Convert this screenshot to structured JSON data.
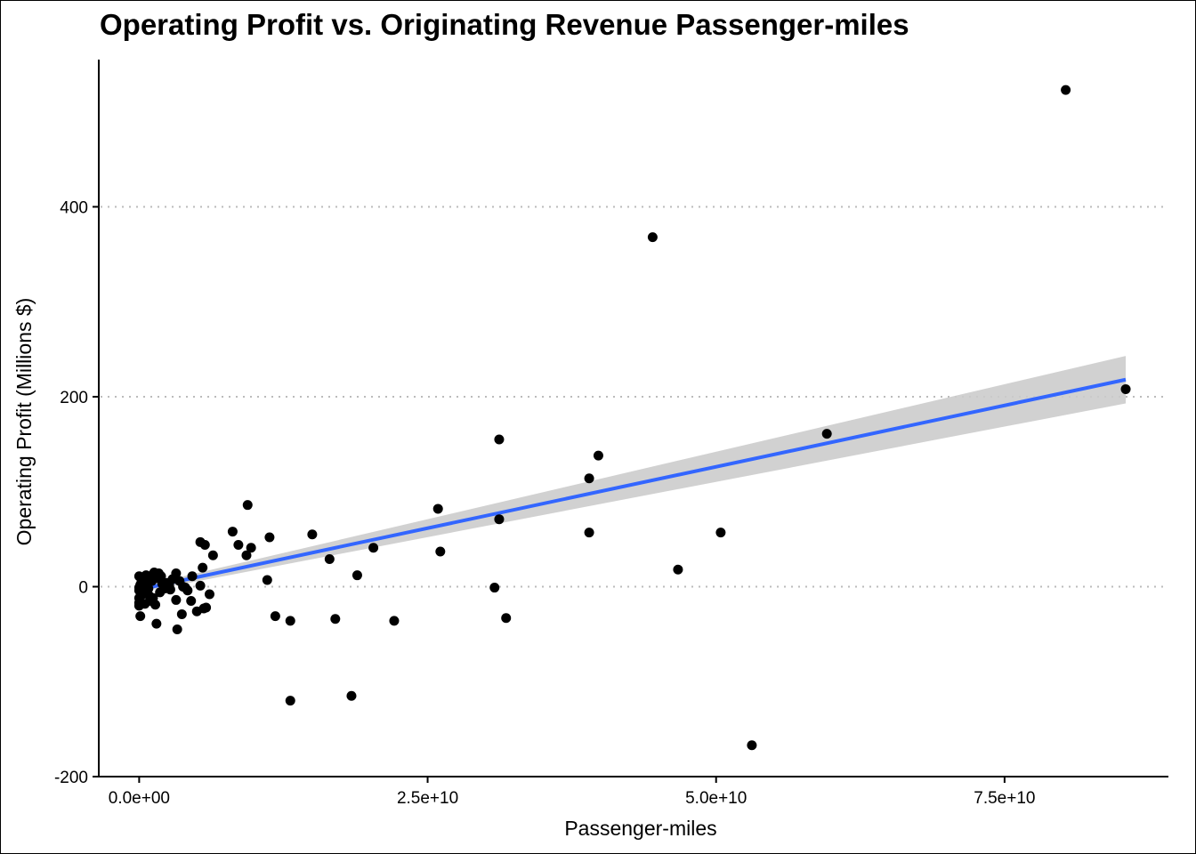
{
  "chart_data": {
    "type": "scatter",
    "title": "Operating Profit vs. Originating Revenue Passenger-miles",
    "xlabel": "Passenger-miles",
    "ylabel": "Operating Profit (Millions $)",
    "xlim": [
      -3500000000.0,
      89200000000.0
    ],
    "ylim": [
      -200,
      555
    ],
    "x_ticks": [
      0,
      25000000000,
      50000000000,
      75000000000
    ],
    "x_tick_labels": [
      "0.0e+00",
      "2.5e+10",
      "5.0e+10",
      "7.5e+10"
    ],
    "y_ticks": [
      -200,
      0,
      200,
      400
    ],
    "y_tick_labels": [
      "-200",
      "0",
      "200",
      "400"
    ],
    "grid": "horizontal dotted",
    "colors": {
      "points": "#000000",
      "fit_line": "#3366ff",
      "confidence_band": "#cccccc",
      "grid": "#bbbbbb"
    },
    "fit": {
      "method": "linear",
      "x": [
        0,
        85500000000
      ],
      "y": [
        -3,
        218
      ],
      "ci_lower": [
        -6,
        193
      ],
      "ci_upper": [
        0,
        243
      ]
    },
    "points": [
      {
        "x": 80300000000,
        "y": 523
      },
      {
        "x": 44500000000,
        "y": 368
      },
      {
        "x": 85500000000,
        "y": 208
      },
      {
        "x": 59600000000,
        "y": 161
      },
      {
        "x": 39800000000,
        "y": 138
      },
      {
        "x": 31200000000,
        "y": 155
      },
      {
        "x": 39000000000,
        "y": 114
      },
      {
        "x": 25900000000,
        "y": 82
      },
      {
        "x": 31200000000,
        "y": 71
      },
      {
        "x": 39000000000,
        "y": 57
      },
      {
        "x": 50400000000,
        "y": 57
      },
      {
        "x": 26100000000,
        "y": 37
      },
      {
        "x": 46700000000,
        "y": 18
      },
      {
        "x": 30800000000,
        "y": -1
      },
      {
        "x": 31800000000,
        "y": -33
      },
      {
        "x": 53100000000,
        "y": -167
      },
      {
        "x": 9400000000,
        "y": 86
      },
      {
        "x": 8100000000,
        "y": 58
      },
      {
        "x": 8600000000,
        "y": 44
      },
      {
        "x": 9700000000,
        "y": 41
      },
      {
        "x": 9300000000,
        "y": 33
      },
      {
        "x": 11300000000,
        "y": 52
      },
      {
        "x": 15000000000,
        "y": 55
      },
      {
        "x": 16500000000,
        "y": 29
      },
      {
        "x": 20300000000,
        "y": 41
      },
      {
        "x": 18900000000,
        "y": 12
      },
      {
        "x": 11100000000,
        "y": 7
      },
      {
        "x": 11800000000,
        "y": -31
      },
      {
        "x": 13100000000,
        "y": -36
      },
      {
        "x": 17000000000,
        "y": -34
      },
      {
        "x": 22100000000,
        "y": -36
      },
      {
        "x": 13100000000,
        "y": -120
      },
      {
        "x": 18400000000,
        "y": -115
      },
      {
        "x": 5300000000,
        "y": 47
      },
      {
        "x": 5700000000,
        "y": 44
      },
      {
        "x": 6400000000,
        "y": 33
      },
      {
        "x": 5500000000,
        "y": 20
      },
      {
        "x": 3200000000,
        "y": 14
      },
      {
        "x": 6100000000,
        "y": -8
      },
      {
        "x": 5300000000,
        "y": 1
      },
      {
        "x": 5600000000,
        "y": -23
      },
      {
        "x": 5000000000,
        "y": -26
      },
      {
        "x": 3700000000,
        "y": -29
      },
      {
        "x": 3300000000,
        "y": -45
      },
      {
        "x": 1500000000,
        "y": -39
      },
      {
        "x": 3200000000,
        "y": -14
      },
      {
        "x": 4500000000,
        "y": -15
      },
      {
        "x": 4200000000,
        "y": -4
      },
      {
        "x": 3800000000,
        "y": 0
      },
      {
        "x": 2400000000,
        "y": 4
      },
      {
        "x": 2900000000,
        "y": 8
      },
      {
        "x": 1700000000,
        "y": 14
      },
      {
        "x": 1300000000,
        "y": 15
      },
      {
        "x": 900000000,
        "y": 11
      },
      {
        "x": 500000000,
        "y": 8
      },
      {
        "x": 0,
        "y": 11
      },
      {
        "x": 200000000,
        "y": 5
      },
      {
        "x": 100000000,
        "y": 2
      },
      {
        "x": 0,
        "y": -1
      },
      {
        "x": 0,
        "y": -4
      },
      {
        "x": 300000000,
        "y": -8
      },
      {
        "x": 0,
        "y": -12
      },
      {
        "x": 0,
        "y": -17
      },
      {
        "x": 0,
        "y": -20
      },
      {
        "x": 100000000,
        "y": -31
      },
      {
        "x": 500000000,
        "y": -18
      },
      {
        "x": 900000000,
        "y": -10
      },
      {
        "x": 1400000000,
        "y": -19
      },
      {
        "x": 1800000000,
        "y": -6
      },
      {
        "x": 2200000000,
        "y": -2
      },
      {
        "x": 2600000000,
        "y": 1
      },
      {
        "x": 700000000,
        "y": 3
      },
      {
        "x": 1100000000,
        "y": 6
      },
      {
        "x": 1600000000,
        "y": 9
      },
      {
        "x": 400000000,
        "y": -5
      },
      {
        "x": 800000000,
        "y": -2
      },
      {
        "x": 1200000000,
        "y": -12
      },
      {
        "x": 2000000000,
        "y": 3
      },
      {
        "x": 2700000000,
        "y": -3
      },
      {
        "x": 4600000000,
        "y": 11
      },
      {
        "x": 3500000000,
        "y": 6
      },
      {
        "x": 600000000,
        "y": 12
      },
      {
        "x": 1000000000,
        "y": -15
      },
      {
        "x": 300000000,
        "y": 6
      },
      {
        "x": 1900000000,
        "y": 11
      },
      {
        "x": 4000000000,
        "y": -1
      },
      {
        "x": 5800000000,
        "y": -22
      }
    ]
  }
}
